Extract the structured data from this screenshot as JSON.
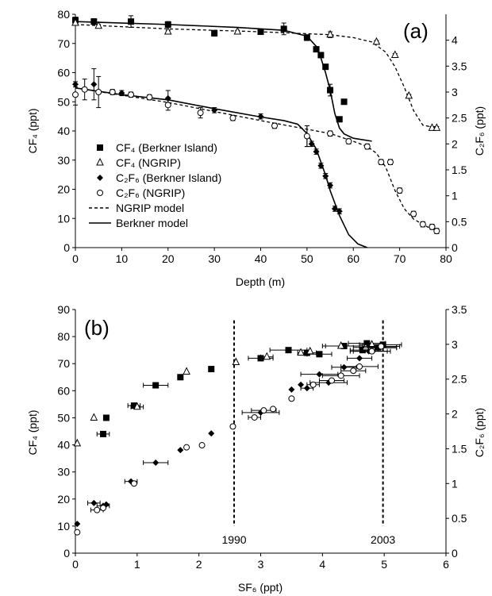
{
  "chart_data": [
    {
      "type": "scatter",
      "panel_label": "(a)",
      "xlabel": "Depth (m)",
      "ylabel": "CF₄ (ppt)",
      "y2label": "C₂F₆ (ppt)",
      "xlim": [
        0,
        80
      ],
      "ylim": [
        0,
        80
      ],
      "y2lim": [
        0,
        4.5
      ],
      "xticks": [
        0,
        10,
        20,
        30,
        40,
        50,
        60,
        70,
        80
      ],
      "yticks": [
        0,
        10,
        20,
        30,
        40,
        50,
        60,
        70,
        80
      ],
      "y2ticks": [
        0,
        0.5,
        1,
        1.5,
        2,
        2.5,
        3,
        3.5,
        4
      ],
      "legend": [
        "CF₄ (Berkner Island)",
        "CF₄ (NGRIP)",
        "C₂F₆ (Berkner Island)",
        "C₂F₆ (NGRIP)",
        "NGRIP model",
        "Berkner model"
      ],
      "series": [
        {
          "axis": "left",
          "marker": "filled-square",
          "color": "#000000",
          "points": [
            [
              0,
              78
            ],
            [
              4,
              77.5
            ],
            [
              12,
              77.5
            ],
            [
              20,
              76.5
            ],
            [
              30,
              73.5
            ],
            [
              40,
              74
            ],
            [
              45,
              75
            ],
            [
              50,
              72
            ],
            [
              52,
              68
            ],
            [
              53,
              66
            ],
            [
              54,
              62
            ],
            [
              55,
              54
            ],
            [
              57,
              44
            ],
            [
              58,
              50
            ]
          ],
          "yerr": [
            1,
            1,
            2,
            1,
            1,
            0.5,
            2,
            1,
            0.5,
            0.5,
            0.5,
            2,
            0.5,
            0.5
          ]
        },
        {
          "axis": "left",
          "marker": "open-triangle",
          "color": "#000000",
          "points": [
            [
              0,
              77
            ],
            [
              5,
              76
            ],
            [
              20,
              74
            ],
            [
              35,
              74
            ],
            [
              55,
              73
            ],
            [
              65,
              70.5
            ],
            [
              69,
              66
            ],
            [
              72,
              52
            ],
            [
              77,
              41
            ],
            [
              78,
              41
            ]
          ],
          "yerr": [
            0.5,
            0.5,
            0.5,
            0.5,
            1,
            0.5,
            0.5,
            0.5,
            0.5,
            0.5
          ]
        },
        {
          "axis": "right",
          "marker": "filled-diamond",
          "color": "#000000",
          "points": [
            [
              0,
              3.15
            ],
            [
              4,
              3.15
            ],
            [
              10,
              2.98
            ],
            [
              20,
              2.88
            ],
            [
              30,
              2.65
            ],
            [
              40,
              2.53
            ],
            [
              50,
              2.15
            ],
            [
              51,
              2.0
            ],
            [
              52,
              1.85
            ],
            [
              53,
              1.58
            ],
            [
              54,
              1.38
            ],
            [
              55,
              1.2
            ],
            [
              56,
              0.75
            ],
            [
              57,
              0.7
            ]
          ],
          "yerr": [
            0.05,
            0.3,
            0.05,
            0.15,
            0.05,
            0.05,
            0.2,
            0.05,
            0.05,
            0.05,
            0.05,
            0.05,
            0.05,
            0.05
          ]
        },
        {
          "axis": "right",
          "marker": "open-circle",
          "color": "#000000",
          "points": [
            [
              0,
              2.95
            ],
            [
              2,
              3.05
            ],
            [
              5,
              3.0
            ],
            [
              8,
              3.0
            ],
            [
              12,
              2.95
            ],
            [
              16,
              2.9
            ],
            [
              20,
              2.75
            ],
            [
              27,
              2.6
            ],
            [
              34,
              2.5
            ],
            [
              43,
              2.35
            ],
            [
              50,
              2.15
            ],
            [
              55,
              2.2
            ],
            [
              59,
              2.05
            ],
            [
              63,
              1.95
            ],
            [
              66,
              1.65
            ],
            [
              68,
              1.65
            ],
            [
              70,
              1.1
            ],
            [
              73,
              0.65
            ],
            [
              75,
              0.45
            ],
            [
              77,
              0.4
            ],
            [
              78,
              0.32
            ]
          ],
          "yerr": [
            0.2,
            0.2,
            0.3,
            0.05,
            0.05,
            0.05,
            0.1,
            0.1,
            0.05,
            0.05,
            0.2,
            0.05,
            0.05,
            0.05,
            0.05,
            0.05,
            0.05,
            0.05,
            0.05,
            0.05,
            0.05
          ]
        },
        {
          "axis": "left",
          "style": "dashed",
          "name": "NGRIP model",
          "points": [
            [
              0,
              76.5
            ],
            [
              20,
              75
            ],
            [
              40,
              74
            ],
            [
              55,
              73
            ],
            [
              60,
              72
            ],
            [
              64,
              70.5
            ],
            [
              67,
              67
            ],
            [
              69,
              62
            ],
            [
              71,
              55
            ],
            [
              73,
              47
            ],
            [
              75,
              42
            ],
            [
              78,
              41
            ]
          ]
        },
        {
          "axis": "left",
          "style": "solid",
          "name": "Berkner model",
          "points": [
            [
              0,
              77.5
            ],
            [
              20,
              76.5
            ],
            [
              35,
              75.5
            ],
            [
              45,
              74.5
            ],
            [
              50,
              72.5
            ],
            [
              52,
              69
            ],
            [
              53,
              65
            ],
            [
              54,
              60
            ],
            [
              55,
              54
            ],
            [
              56,
              46
            ],
            [
              57,
              41
            ],
            [
              58,
              39
            ],
            [
              60,
              37.5
            ],
            [
              64,
              36.5
            ]
          ]
        },
        {
          "axis": "right",
          "style": "dashed",
          "name": "NGRIP model",
          "points": [
            [
              0,
              3.08
            ],
            [
              20,
              2.8
            ],
            [
              40,
              2.45
            ],
            [
              55,
              2.2
            ],
            [
              60,
              2.05
            ],
            [
              63,
              1.95
            ],
            [
              65,
              1.82
            ],
            [
              67,
              1.55
            ],
            [
              69,
              1.1
            ],
            [
              71,
              0.75
            ],
            [
              73,
              0.55
            ],
            [
              76,
              0.4
            ],
            [
              78,
              0.33
            ]
          ]
        },
        {
          "axis": "right",
          "style": "solid",
          "name": "Berkner model",
          "points": [
            [
              0,
              3.08
            ],
            [
              10,
              2.95
            ],
            [
              20,
              2.85
            ],
            [
              30,
              2.68
            ],
            [
              40,
              2.52
            ],
            [
              45,
              2.45
            ],
            [
              48,
              2.38
            ],
            [
              50,
              2.2
            ],
            [
              52,
              1.9
            ],
            [
              54,
              1.4
            ],
            [
              55,
              1.1
            ],
            [
              57,
              0.62
            ],
            [
              59,
              0.25
            ],
            [
              61,
              0.07
            ],
            [
              63,
              0.0
            ]
          ]
        }
      ]
    },
    {
      "type": "scatter",
      "panel_label": "(b)",
      "xlabel": "SF₆ (ppt)",
      "ylabel": "CF₄ (ppt)",
      "y2label": "C₂F₆ (ppt)",
      "xlim": [
        0,
        6
      ],
      "ylim": [
        0,
        90
      ],
      "y2lim": [
        0,
        3.5
      ],
      "xticks": [
        0,
        1,
        2,
        3,
        4,
        5,
        6
      ],
      "yticks": [
        0,
        10,
        20,
        30,
        40,
        50,
        60,
        70,
        80,
        90
      ],
      "y2ticks": [
        0,
        0.5,
        1,
        1.5,
        2,
        2.5,
        3,
        3.5
      ],
      "vlines": [
        {
          "x": 2.57,
          "label": "1990"
        },
        {
          "x": 4.98,
          "label": "2003"
        }
      ],
      "series": [
        {
          "axis": "left",
          "marker": "filled-square",
          "points": [
            [
              0.45,
              44
            ],
            [
              0.5,
              50
            ],
            [
              0.95,
              54.5
            ],
            [
              1.3,
              62
            ],
            [
              1.7,
              65
            ],
            [
              2.2,
              68
            ],
            [
              3.0,
              72
            ],
            [
              3.45,
              75
            ],
            [
              3.75,
              74
            ],
            [
              3.95,
              73.5
            ],
            [
              4.35,
              76.5
            ],
            [
              4.65,
              75
            ],
            [
              4.72,
              77.5
            ],
            [
              4.9,
              76
            ],
            [
              4.98,
              77
            ]
          ],
          "xerr": [
            0.1,
            0,
            0.1,
            0.2,
            0,
            0,
            0.2,
            0.3,
            0.15,
            0.2,
            0.3,
            0.2,
            0.3,
            0.3,
            0.3
          ]
        },
        {
          "axis": "left",
          "marker": "open-triangle",
          "points": [
            [
              0.03,
              40.5
            ],
            [
              0.3,
              50
            ],
            [
              1.0,
              54
            ],
            [
              1.8,
              67
            ],
            [
              2.6,
              70.5
            ],
            [
              3.1,
              72.5
            ],
            [
              3.65,
              74
            ],
            [
              3.8,
              74.5
            ],
            [
              4.3,
              76.5
            ],
            [
              4.7,
              76
            ],
            [
              4.8,
              77
            ]
          ],
          "xerr": [
            0,
            0,
            0.1,
            0,
            0,
            0.1,
            0,
            0,
            0.3,
            0.2,
            0.2
          ]
        },
        {
          "axis": "right",
          "marker": "filled-diamond",
          "points": [
            [
              0.03,
              0.42
            ],
            [
              0.3,
              0.72
            ],
            [
              0.45,
              0.68
            ],
            [
              0.5,
              0.7
            ],
            [
              0.9,
              1.03
            ],
            [
              1.3,
              1.3
            ],
            [
              1.7,
              1.48
            ],
            [
              2.2,
              1.72
            ],
            [
              3.0,
              2.02
            ],
            [
              3.5,
              2.35
            ],
            [
              3.65,
              2.42
            ],
            [
              3.75,
              2.37
            ],
            [
              3.95,
              2.57
            ],
            [
              4.1,
              2.45
            ],
            [
              4.35,
              2.67
            ],
            [
              4.6,
              2.8
            ],
            [
              4.75,
              2.9
            ],
            [
              4.9,
              2.95
            ]
          ],
          "xerr": [
            0,
            0.1,
            0.1,
            0,
            0.1,
            0.2,
            0,
            0,
            0.3,
            0,
            0,
            0.1,
            0.3,
            0.3,
            0.2,
            0.2,
            0.3,
            0.3
          ]
        },
        {
          "axis": "right",
          "marker": "open-circle",
          "points": [
            [
              0.03,
              0.3
            ],
            [
              0.35,
              0.62
            ],
            [
              0.45,
              0.65
            ],
            [
              0.95,
              1.0
            ],
            [
              1.8,
              1.52
            ],
            [
              2.05,
              1.55
            ],
            [
              2.55,
              1.82
            ],
            [
              2.9,
              1.95
            ],
            [
              3.05,
              2.05
            ],
            [
              3.2,
              2.07
            ],
            [
              3.5,
              2.22
            ],
            [
              3.85,
              2.42
            ],
            [
              4.15,
              2.48
            ],
            [
              4.3,
              2.55
            ],
            [
              4.5,
              2.62
            ],
            [
              4.6,
              2.68
            ],
            [
              4.8,
              2.9
            ],
            [
              4.95,
              2.97
            ]
          ],
          "xerr": [
            0,
            0.1,
            0,
            0,
            0,
            0,
            0,
            0.1,
            0.2,
            0,
            0,
            0.1,
            0.2,
            0.3,
            0.2,
            0.3,
            0.3,
            0.3
          ]
        }
      ]
    }
  ]
}
